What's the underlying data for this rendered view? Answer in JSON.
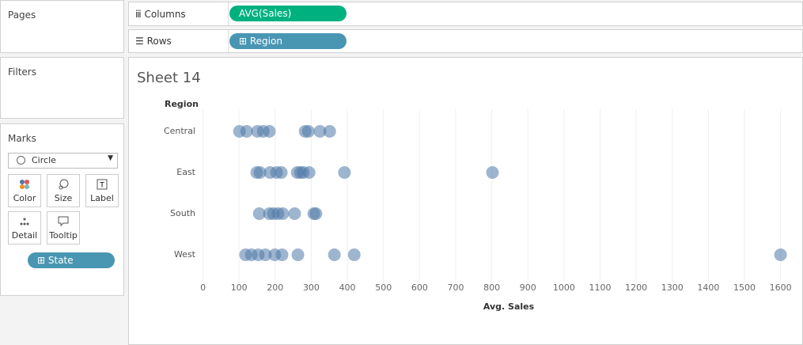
{
  "ui": {
    "pages": "Pages",
    "filters": "Filters",
    "marks": {
      "title": "Marks",
      "mark_type": "Circle",
      "buttons": [
        "Color",
        "Size",
        "Label",
        "Detail",
        "Tooltip"
      ],
      "pill": "State"
    },
    "shelves": {
      "columns": {
        "label": "Columns",
        "pill": "AVG(Sales)"
      },
      "rows": {
        "label": "Rows",
        "pill": "Region"
      }
    },
    "sheet_title": "Sheet 14"
  },
  "chart_data": {
    "type": "strip",
    "y_label": "Region",
    "x_label": "Avg. Sales",
    "categories": [
      "Central",
      "East",
      "South",
      "West"
    ],
    "values": [
      [
        101,
        121,
        151,
        167,
        184,
        283,
        292,
        324,
        351
      ],
      [
        149,
        158,
        186,
        204,
        217,
        261,
        270,
        278,
        294,
        392,
        802
      ],
      [
        156,
        184,
        195,
        208,
        221,
        254,
        307,
        313
      ],
      [
        118,
        134,
        153,
        173,
        199,
        219,
        263,
        364,
        419,
        1600
      ]
    ],
    "color": "#4e79a7",
    "xlim": [
      -10,
      1660
    ],
    "xticks": [
      0,
      100,
      200,
      300,
      400,
      500,
      600,
      700,
      800,
      900,
      1000,
      1100,
      1200,
      1300,
      1400,
      1500,
      1600
    ],
    "grid": true
  }
}
